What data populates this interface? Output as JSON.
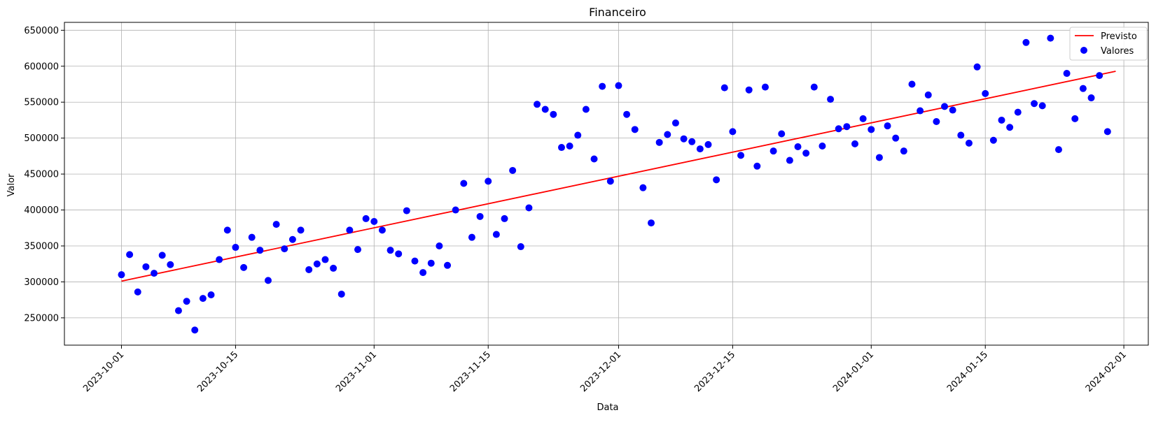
{
  "chart_data": {
    "type": "scatter",
    "title": "Financeiro",
    "xlabel": "Data",
    "ylabel": "Valor",
    "grid": true,
    "legend_position": "top-right",
    "xlim": [
      "2023-09-24",
      "2024-02-04"
    ],
    "ylim": [
      212000,
      661000
    ],
    "x_ticks": [
      "2023-10-01",
      "2023-10-15",
      "2023-11-01",
      "2023-11-15",
      "2023-12-01",
      "2023-12-15",
      "2024-01-01",
      "2024-01-15",
      "2024-02-01"
    ],
    "y_ticks": [
      250000,
      300000,
      350000,
      400000,
      450000,
      500000,
      550000,
      600000,
      650000
    ],
    "series": [
      {
        "name": "Previsto",
        "kind": "line",
        "color": "#ff0000",
        "points": [
          {
            "x": "2023-10-01",
            "y": 301000
          },
          {
            "x": "2024-01-31",
            "y": 593000
          }
        ]
      },
      {
        "name": "Valores",
        "kind": "scatter",
        "color": "#0000ff",
        "start_date": "2023-10-01",
        "values": [
          310000,
          338000,
          286000,
          321000,
          312000,
          337000,
          324000,
          260000,
          273000,
          233000,
          277000,
          282000,
          331000,
          372000,
          348000,
          320000,
          362000,
          344000,
          302000,
          380000,
          346000,
          359000,
          372000,
          317000,
          325000,
          331000,
          319000,
          283000,
          372000,
          345000,
          388000,
          384000,
          372000,
          344000,
          339000,
          399000,
          329000,
          313000,
          326000,
          350000,
          323000,
          400000,
          437000,
          362000,
          391000,
          440000,
          366000,
          388000,
          455000,
          349000,
          403000,
          547000,
          540000,
          533000,
          487000,
          489000,
          504000,
          540000,
          471000,
          572000,
          440000,
          573000,
          533000,
          512000,
          431000,
          382000,
          494000,
          505000,
          521000,
          499000,
          495000,
          485000,
          491000,
          442000,
          570000,
          509000,
          476000,
          567000,
          461000,
          571000,
          482000,
          506000,
          469000,
          488000,
          479000,
          571000,
          489000,
          554000,
          513000,
          516000,
          492000,
          527000,
          512000,
          473000,
          517000,
          500000,
          482000,
          575000,
          538000,
          560000,
          523000,
          544000,
          539000,
          504000,
          493000,
          599000,
          562000,
          497000,
          525000,
          515000,
          536000,
          633000,
          548000,
          545000,
          639000,
          484000,
          590000,
          527000,
          569000,
          556000,
          587000,
          509000
        ]
      }
    ]
  }
}
